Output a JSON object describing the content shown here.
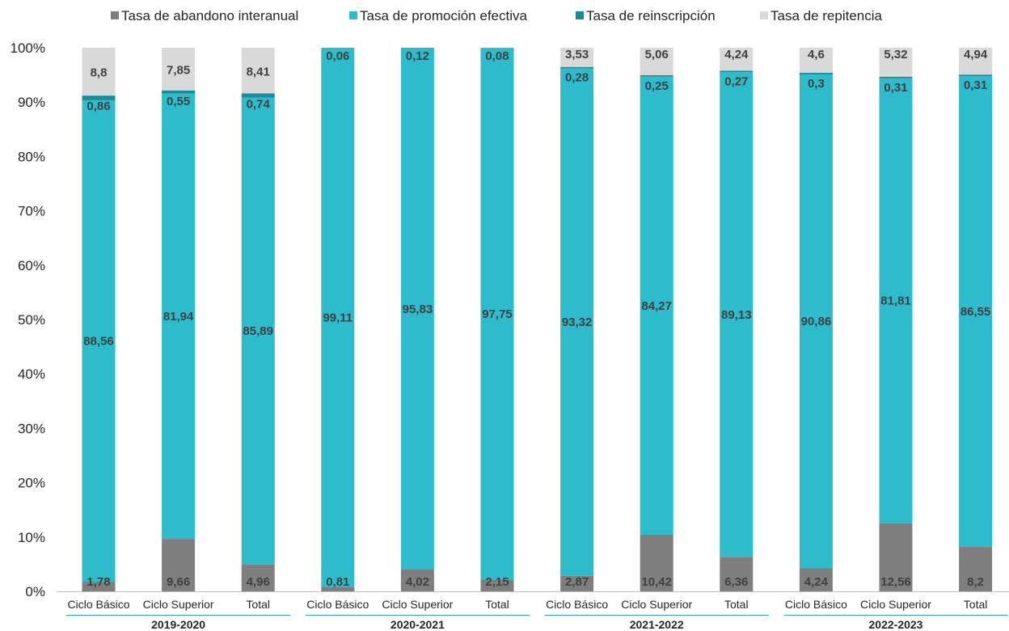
{
  "chart_data": {
    "type": "bar",
    "stacked": true,
    "percent": true,
    "legend_position": "top",
    "grid": false,
    "ylim": [
      0,
      100
    ],
    "y_ticks": [
      "0%",
      "10%",
      "20%",
      "30%",
      "40%",
      "50%",
      "60%",
      "70%",
      "80%",
      "90%",
      "100%"
    ],
    "groups": [
      {
        "label": "2019-2020",
        "categories": [
          "Ciclo Básico",
          "Ciclo Superior",
          "Total"
        ]
      },
      {
        "label": "2020-2021",
        "categories": [
          "Ciclo Básico",
          "Ciclo Superior",
          "Total"
        ]
      },
      {
        "label": "2021-2022",
        "categories": [
          "Ciclo Básico",
          "Ciclo Superior",
          "Total"
        ]
      },
      {
        "label": "2022-2023",
        "categories": [
          "Ciclo Básico",
          "Ciclo Superior",
          "Total"
        ]
      }
    ],
    "series": [
      {
        "name": "Tasa de abandono interanual",
        "color": "#7f7f7f",
        "values": [
          1.78,
          9.66,
          4.96,
          0.81,
          4.02,
          2.15,
          2.87,
          10.42,
          6.36,
          4.24,
          12.56,
          8.2
        ],
        "labels": [
          "1,78",
          "9,66",
          "4,96",
          "0,81",
          "4,02",
          "2,15",
          "2,87",
          "10,42",
          "6,36",
          "4,24",
          "12,56",
          "8,2"
        ]
      },
      {
        "name": "Tasa de promoción efectiva",
        "color": "#2ebccd",
        "values": [
          88.56,
          81.94,
          85.89,
          99.11,
          95.83,
          97.75,
          93.32,
          84.27,
          89.13,
          90.86,
          81.81,
          86.55
        ],
        "labels": [
          "88,56",
          "81,94",
          "85,89",
          "99,11",
          "95,83",
          "97,75",
          "93,32",
          "84,27",
          "89,13",
          "90,86",
          "81,81",
          "86,55"
        ]
      },
      {
        "name": "Tasa de reinscripción",
        "color": "#1b8b9b",
        "values": [
          0.86,
          0.55,
          0.74,
          0.06,
          0.12,
          0.08,
          0.28,
          0.25,
          0.27,
          0.3,
          0.31,
          0.31
        ],
        "labels": [
          "0,86",
          "0,55",
          "0,74",
          "0,06",
          "0,12",
          "0,08",
          "0,28",
          "0,25",
          "0,27",
          "0,3",
          "0,31",
          "0,31"
        ]
      },
      {
        "name": "Tasa de repitencia",
        "color": "#d9d9d9",
        "values": [
          8.8,
          7.85,
          8.41,
          0,
          0,
          0,
          3.53,
          5.06,
          4.24,
          4.6,
          5.32,
          4.94
        ],
        "labels": [
          "8,8",
          "7,85",
          "8,41",
          "",
          "",
          "",
          "3,53",
          "5,06",
          "4,24",
          "4,6",
          "5,32",
          "4,94"
        ]
      }
    ]
  }
}
